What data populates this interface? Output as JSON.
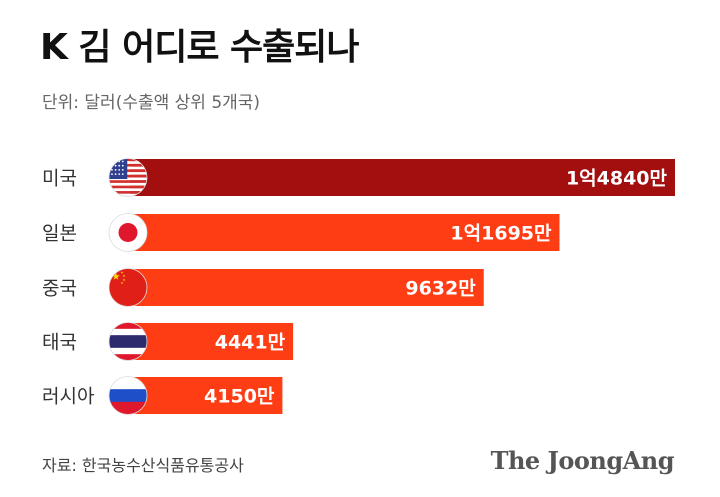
{
  "title": "K 김 어디로 수출되나",
  "subtitle": "단위: 달러(수출액 상위 5개국)",
  "source": "자료: 한국농수산식품유통공사",
  "brand": "The JoongAng",
  "colors": {
    "first_bar": "#a30f0f",
    "other_bars": "#ff3d14",
    "value_text": "#ffffff"
  },
  "chart_data": {
    "type": "bar",
    "orientation": "horizontal",
    "categories": [
      "미국",
      "일본",
      "중국",
      "태국",
      "러시아"
    ],
    "values": [
      148400000,
      116950000,
      96320000,
      44410000,
      41500000
    ],
    "value_labels": [
      "1억4840만",
      "1억1695만",
      "9632만",
      "4441만",
      "4150만"
    ],
    "flag_icons": [
      "us-flag-icon",
      "japan-flag-icon",
      "china-flag-icon",
      "thailand-flag-icon",
      "russia-flag-icon"
    ],
    "unit": "달러",
    "grid": false,
    "legend": "none"
  }
}
